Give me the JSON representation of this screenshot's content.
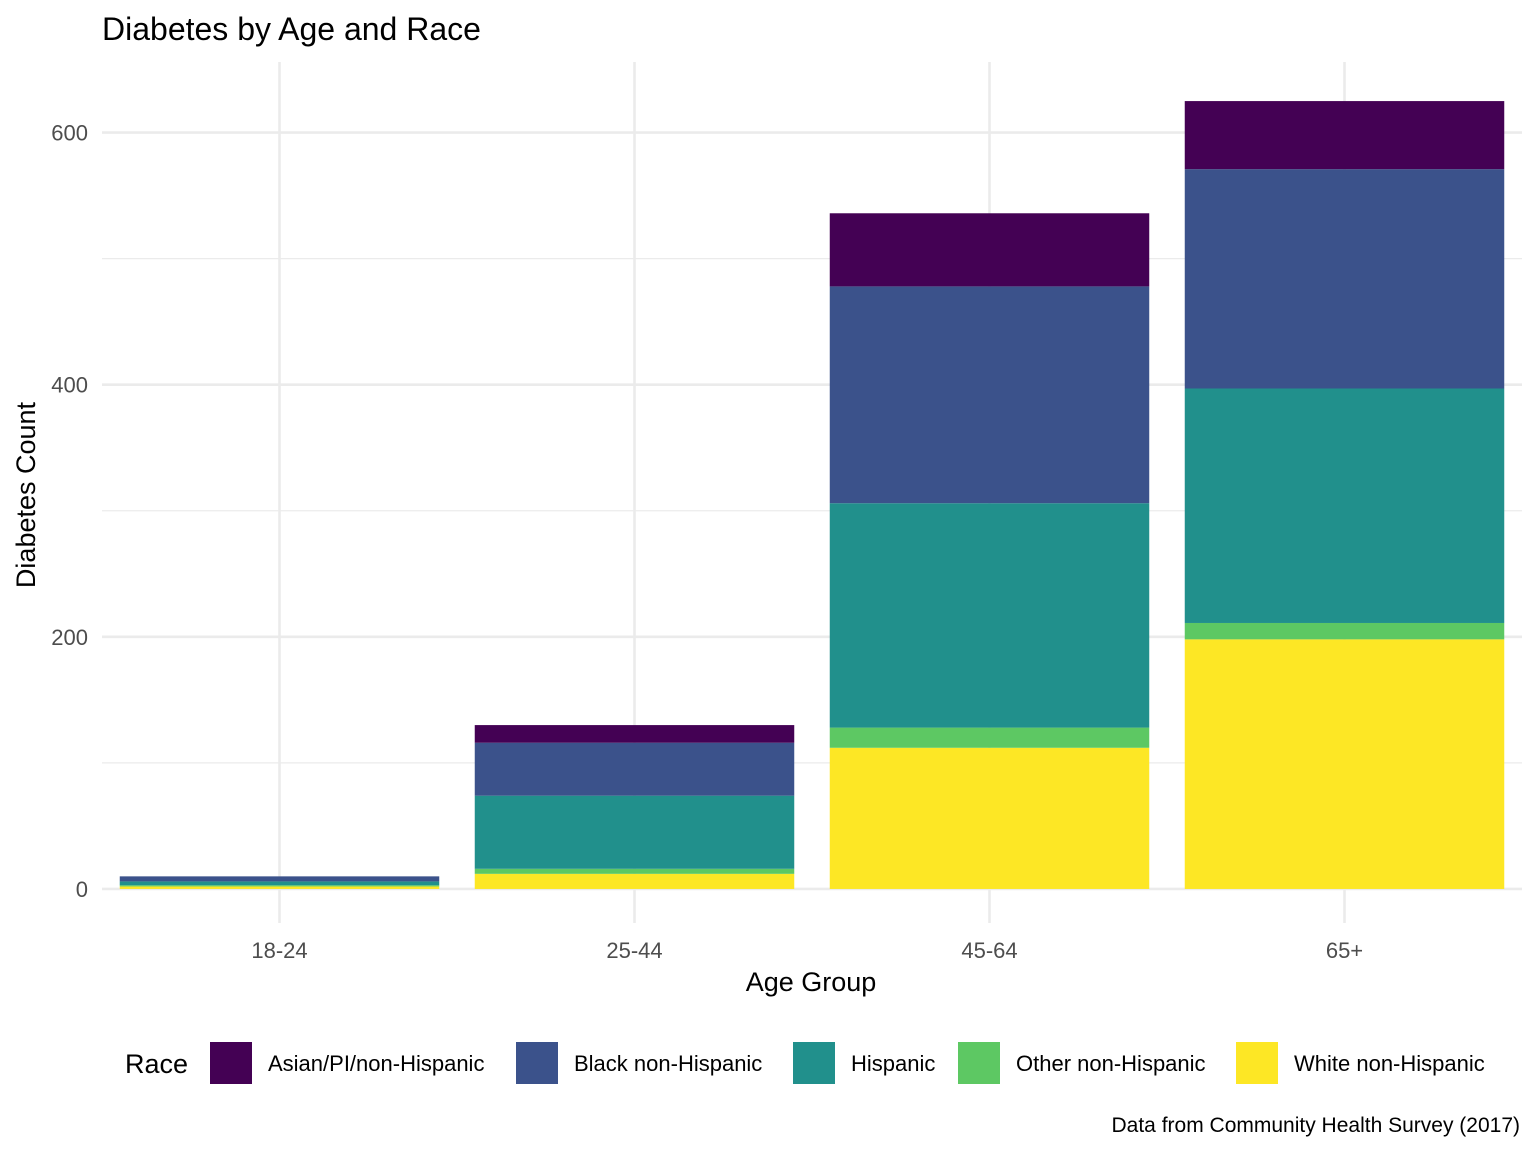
{
  "chart_data": {
    "type": "bar",
    "stacked": true,
    "title": "Diabetes by Age and Race",
    "xlabel": "Age Group",
    "ylabel": "Diabetes Count",
    "caption": "Data from Community Health Survey (2017)",
    "legend_title": "Race",
    "legend_position": "bottom",
    "grid": true,
    "ylim": [
      -27,
      656
    ],
    "yticks": [
      0,
      200,
      400,
      600
    ],
    "categories": [
      "18-24",
      "25-44",
      "45-64",
      "65+"
    ],
    "series": [
      {
        "name": "White non-Hispanic",
        "color": "#FDE725",
        "values": [
          2,
          12,
          112,
          198
        ]
      },
      {
        "name": "Other non-Hispanic",
        "color": "#5DC863",
        "values": [
          1,
          4,
          16,
          13
        ]
      },
      {
        "name": "Hispanic",
        "color": "#21908C",
        "values": [
          3,
          58,
          178,
          186
        ]
      },
      {
        "name": "Black non-Hispanic",
        "color": "#3B528B",
        "values": [
          4,
          42,
          172,
          174
        ]
      },
      {
        "name": "Asian/PI/non-Hispanic",
        "color": "#440154",
        "values": [
          0,
          14,
          58,
          54
        ]
      }
    ],
    "legend_order": [
      "Asian/PI/non-Hispanic",
      "Black non-Hispanic",
      "Hispanic",
      "Other non-Hispanic",
      "White non-Hispanic"
    ]
  }
}
